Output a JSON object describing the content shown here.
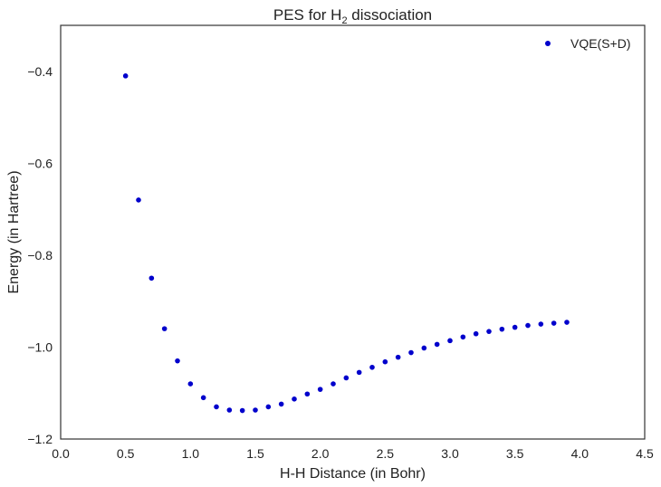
{
  "chart_data": {
    "type": "scatter",
    "title": "PES for H$_2$ dissociation",
    "title_parts": {
      "prefix": "PES for H",
      "subscript": "2",
      "suffix": " dissociation"
    },
    "xlabel": "H-H Distance (in Bohr)",
    "ylabel": "Energy (in Hartree)",
    "xlim": [
      0.0,
      4.5
    ],
    "ylim": [
      -1.2,
      -0.3
    ],
    "xticks": [
      0.0,
      0.5,
      1.0,
      1.5,
      2.0,
      2.5,
      3.0,
      3.5,
      4.0,
      4.5
    ],
    "xtick_labels": [
      "0.0",
      "0.5",
      "1.0",
      "1.5",
      "2.0",
      "2.5",
      "3.0",
      "3.5",
      "4.0",
      "4.5"
    ],
    "yticks": [
      -1.2,
      -1.0,
      -0.8,
      -0.6,
      -0.4
    ],
    "ytick_labels": [
      "−1.2",
      "−1.0",
      "−0.8",
      "−0.6",
      "−0.4"
    ],
    "grid": false,
    "legend_position": "top-right",
    "series": [
      {
        "name": "VQE(S+D)",
        "color": "#0000cc",
        "x": [
          0.5,
          0.6,
          0.7,
          0.8,
          0.9,
          1.0,
          1.1,
          1.2,
          1.3,
          1.4,
          1.5,
          1.6,
          1.7,
          1.8,
          1.9,
          2.0,
          2.1,
          2.2,
          2.3,
          2.4,
          2.5,
          2.6,
          2.7,
          2.8,
          2.9,
          3.0,
          3.1,
          3.2,
          3.3,
          3.4,
          3.5,
          3.6,
          3.7,
          3.8,
          3.9
        ],
        "y": [
          -0.41,
          -0.68,
          -0.85,
          -0.96,
          -1.03,
          -1.08,
          -1.11,
          -1.13,
          -1.137,
          -1.138,
          -1.137,
          -1.13,
          -1.124,
          -1.113,
          -1.102,
          -1.092,
          -1.08,
          -1.067,
          -1.055,
          -1.044,
          -1.032,
          -1.022,
          -1.012,
          -1.002,
          -0.994,
          -0.986,
          -0.978,
          -0.971,
          -0.966,
          -0.961,
          -0.957,
          -0.953,
          -0.95,
          -0.948,
          -0.946
        ]
      }
    ]
  }
}
